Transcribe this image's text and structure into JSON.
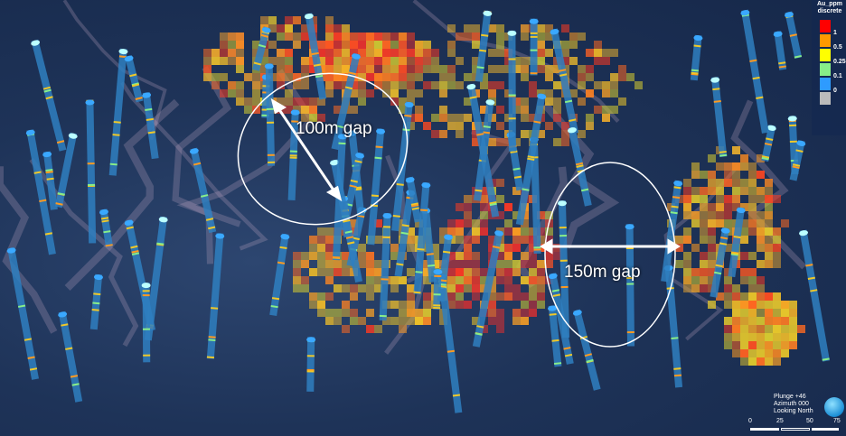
{
  "annotations": [
    {
      "text": "100m gap"
    },
    {
      "text": "150m gap"
    }
  ],
  "legend": {
    "title": "Au_ppm discrete",
    "items": [
      {
        "color": "#ff0000",
        "label": "1"
      },
      {
        "color": "#ff9900",
        "label": "0.5"
      },
      {
        "color": "#ffff00",
        "label": "0.25"
      },
      {
        "color": "#88ee88",
        "label": "0.1"
      },
      {
        "color": "#2e9bff",
        "label": "0"
      },
      {
        "color": "#bbbbbb",
        "label": ""
      }
    ]
  },
  "view": {
    "plunge": "Plunge +46",
    "azimuth": "Azimuth 000",
    "looking": "Looking North"
  },
  "scale_bar": {
    "ticks": [
      "0",
      "25",
      "50",
      "75"
    ]
  }
}
